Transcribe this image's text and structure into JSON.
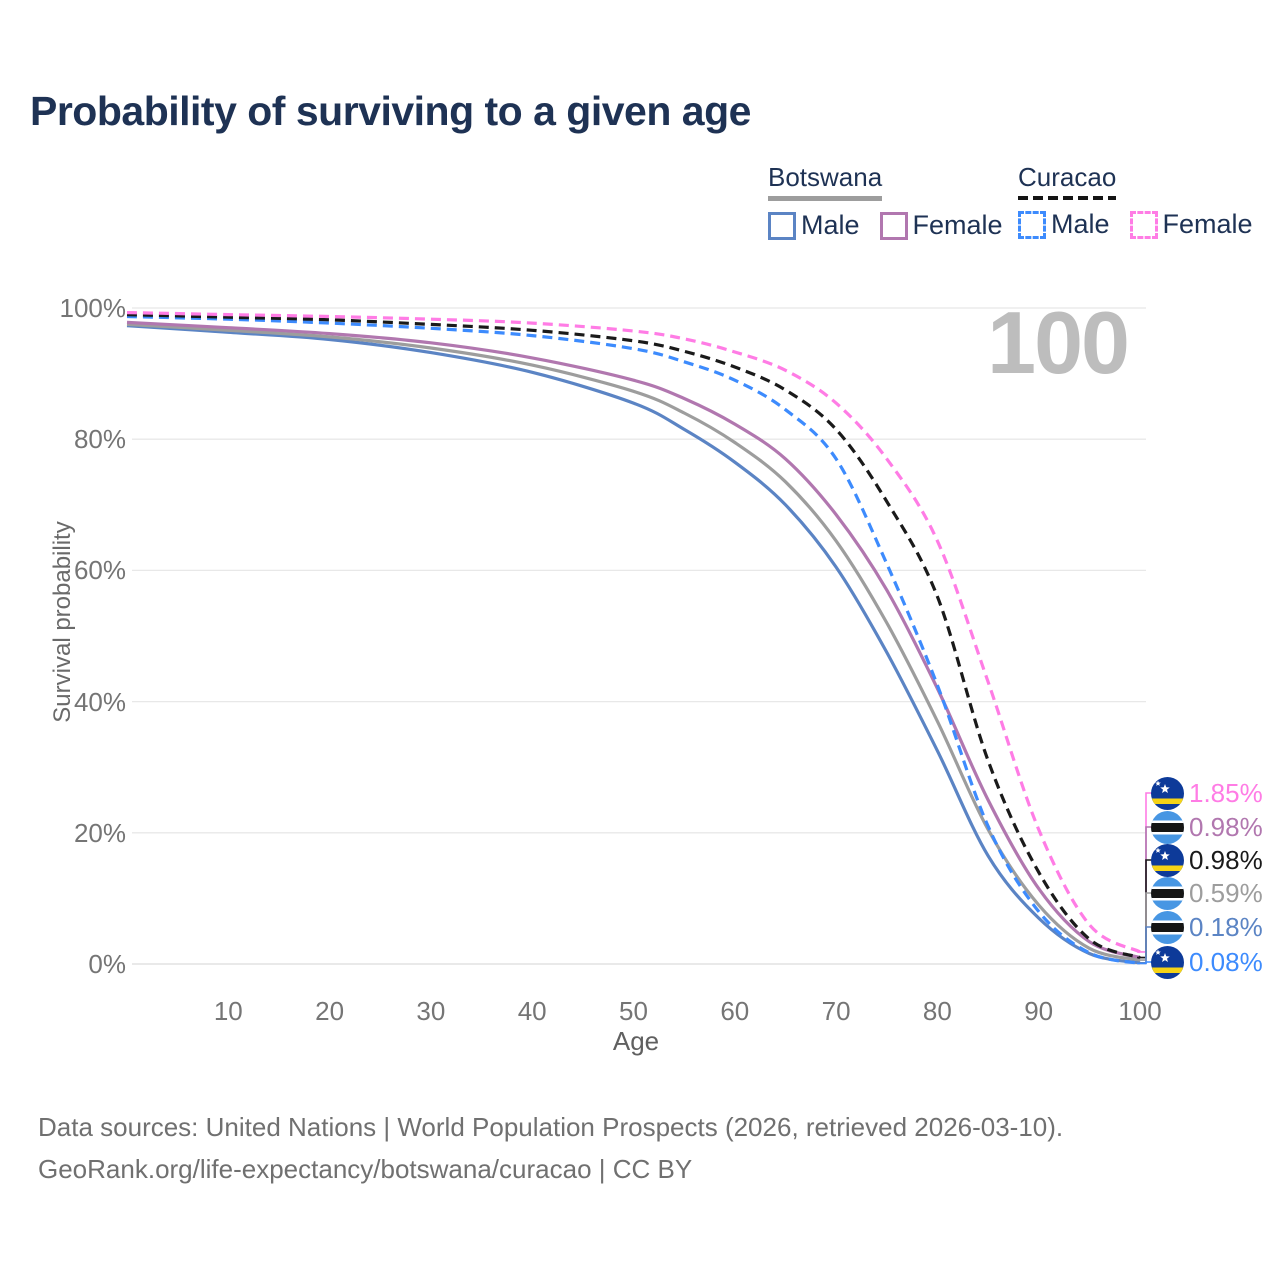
{
  "title": "Probability of surviving to a given age",
  "watermark": "100",
  "legend": {
    "groups": [
      {
        "name": "Botswana",
        "underline_style": "solid",
        "underline_color": "#9d9d9d",
        "items": [
          {
            "label": "Male",
            "color": "#5b84c4",
            "dashed": false
          },
          {
            "label": "Female",
            "color": "#b177af",
            "dashed": false
          }
        ]
      },
      {
        "name": "Curacao",
        "underline_style": "dashed",
        "underline_color": "#141414",
        "items": [
          {
            "label": "Male",
            "color": "#3d8bfd",
            "dashed": true
          },
          {
            "label": "Female",
            "color": "#ff7ce5",
            "dashed": true
          }
        ]
      }
    ]
  },
  "chart_data": {
    "type": "line",
    "title": "Probability of surviving to a given age",
    "xlabel": "Age",
    "ylabel": "Survival probability",
    "xlim": [
      0,
      100
    ],
    "ylim": [
      0,
      100
    ],
    "x_ticks": [
      10,
      20,
      30,
      40,
      50,
      60,
      70,
      80,
      90,
      100
    ],
    "y_ticks": [
      {
        "value": 100,
        "label": "100%"
      },
      {
        "value": 80,
        "label": "80%"
      },
      {
        "value": 60,
        "label": "60%"
      },
      {
        "value": 40,
        "label": "40%"
      },
      {
        "value": 20,
        "label": "20%"
      },
      {
        "value": 0,
        "label": "0%"
      }
    ],
    "grid": "horizontal",
    "legend_position": "top-right",
    "ages": [
      0,
      10,
      20,
      30,
      40,
      50,
      55,
      60,
      65,
      70,
      75,
      80,
      85,
      90,
      95,
      100
    ],
    "series": [
      {
        "name": "Botswana Male",
        "country": "Botswana",
        "sex": "Male",
        "style": "solid",
        "color": "#5b84c4",
        "flag": "botswana",
        "end_label": "0.18%",
        "values": [
          97.3,
          96.3,
          95.2,
          93.2,
          90.2,
          85.5,
          81.5,
          76.5,
          70.0,
          60.5,
          47.5,
          32.5,
          16.5,
          7.0,
          1.6,
          0.18
        ]
      },
      {
        "name": "Botswana All",
        "country": "Botswana",
        "sex": "All",
        "style": "solid",
        "color": "#9d9d9d",
        "flag": "botswana",
        "end_label": "0.59%",
        "values": [
          97.5,
          96.6,
          95.6,
          93.9,
          91.3,
          87.3,
          84.0,
          79.5,
          73.5,
          64.5,
          52.0,
          37.0,
          20.5,
          9.0,
          2.4,
          0.59
        ]
      },
      {
        "name": "Botswana Female",
        "country": "Botswana",
        "sex": "Female",
        "style": "solid",
        "color": "#b177af",
        "flag": "botswana",
        "end_label": "0.98%",
        "values": [
          97.8,
          97.0,
          96.1,
          94.7,
          92.4,
          89.0,
          86.2,
          82.3,
          77.0,
          68.5,
          57.0,
          42.0,
          25.0,
          11.5,
          3.4,
          0.98
        ]
      },
      {
        "name": "Curacao Male",
        "country": "Curacao",
        "sex": "Male",
        "style": "dashed",
        "color": "#3d8bfd",
        "flag": "curacao",
        "end_label": "0.08%",
        "values": [
          98.7,
          98.3,
          97.7,
          96.9,
          95.8,
          93.8,
          91.8,
          89.0,
          84.5,
          77.0,
          61.0,
          42.5,
          21.0,
          8.0,
          1.7,
          0.08
        ]
      },
      {
        "name": "Curacao All",
        "country": "Curacao",
        "sex": "All",
        "style": "dashed",
        "color": "#1a1a1a",
        "flag": "curacao",
        "end_label": "0.98%",
        "values": [
          99.0,
          98.6,
          98.2,
          97.5,
          96.6,
          95.0,
          93.4,
          91.0,
          87.5,
          81.5,
          70.5,
          56.0,
          31.0,
          14.0,
          3.8,
          0.98
        ]
      },
      {
        "name": "Curacao Female",
        "country": "Curacao",
        "sex": "Female",
        "style": "dashed",
        "color": "#ff7ce5",
        "flag": "curacao",
        "end_label": "1.85%",
        "values": [
          99.3,
          99.0,
          98.7,
          98.3,
          97.7,
          96.5,
          95.3,
          93.3,
          90.5,
          85.5,
          77.0,
          64.5,
          43.0,
          20.5,
          6.0,
          1.85
        ]
      }
    ]
  },
  "footer": {
    "line1": "Data sources: United Nations | World Population Prospects (2026, retrieved 2026-03-10).",
    "line2": "GeoRank.org/life-expectancy/botswana/curacao | CC BY"
  }
}
